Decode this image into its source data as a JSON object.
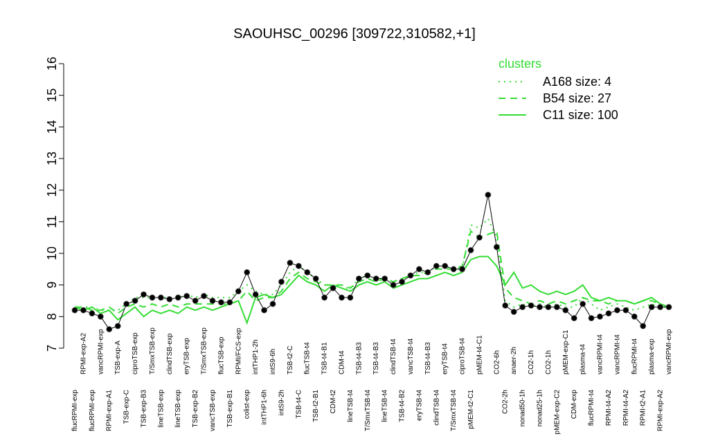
{
  "chart_data": {
    "type": "line",
    "title": "SAOUHSC_00296 [309722,310582,+1]",
    "categories": [
      "flucRPMI-exp",
      "RPMI-exp-A2",
      "flucRPMI-exp",
      "vancRPMI-exp",
      "RPMI-exp-A1",
      "TSB-exp-A",
      "TSB-exp-C",
      "ciproTSB-exp",
      "TSB-exp-B3",
      "T/SmxTSB-exp",
      "lineTSB-exp",
      "clindTSB-exp",
      "lineTSB-exp",
      "eryTSB-exp",
      "TSB-exp-B2",
      "T/SmxTSB-exp",
      "vancTSB-exp",
      "flucTSB-exp",
      "TSB-exp-B1",
      "RPMI/FCS-exp",
      "colist-exp",
      "intTHP1-2h",
      "intTHP1-6h",
      "intS9-6h",
      "intS9-2h",
      "TSB-t2-C",
      "TSB-t4-C",
      "flucTSB-t4",
      "TSB-t2-B1",
      "TSB-t4-B1",
      "CDM-t2",
      "CDM-t4",
      "lineTSB-t4",
      "TSB-t4-B3",
      "T/SmxTSB-t4",
      "TSB-t4-B3",
      "lineTSB-t4",
      "clindTSB-t4",
      "TSB-t4-B2",
      "vancTSB-t4",
      "eryTSB-t4",
      "TSB-t4-B3",
      "clindTSB-t4",
      "eryTSB-t4",
      "T/SmxTSB-t4",
      "ciproTSB-t4",
      "pMEM-t2-C1",
      "pMEM-t4-C1",
      null,
      "CO2-6h",
      "CO2-2h",
      "anaer-2h",
      "nonad50-1h",
      "CO2-1h",
      "nonad25-1h",
      "CO2-1h",
      "pMEM-exp-C2",
      "pMEM-exp-C1",
      "CDM-exp",
      "plasma-t4",
      "flucRPMI-t4",
      "vancRPMI-t4",
      "RPMI-t4-A2",
      "vancRPMI-t4",
      "RPMI-t4-A2",
      "flucRPMI-t4",
      "RPMI-t2-A1",
      "plasma-exp",
      "RPMI-exp-A2",
      "vancRPMI-exp"
    ],
    "values": [
      8.2,
      8.2,
      8.1,
      8.0,
      7.6,
      7.7,
      8.4,
      8.5,
      8.7,
      8.6,
      8.6,
      8.55,
      8.6,
      8.65,
      8.5,
      8.65,
      8.5,
      8.45,
      8.45,
      8.8,
      9.4,
      8.7,
      8.2,
      8.4,
      9.1,
      9.7,
      9.6,
      9.4,
      9.2,
      8.6,
      8.9,
      8.6,
      8.6,
      9.2,
      9.3,
      9.2,
      9.2,
      9.0,
      9.1,
      9.3,
      9.5,
      9.4,
      9.6,
      9.6,
      9.5,
      9.5,
      10.1,
      10.5,
      11.85,
      10.2,
      8.35,
      8.15,
      8.3,
      8.35,
      8.3,
      8.3,
      8.3,
      8.2,
      7.95,
      8.4,
      7.95,
      8.0,
      8.1,
      8.2,
      8.2,
      8.0,
      7.7,
      8.3,
      8.3,
      8.3
    ],
    "color": "#000000",
    "legend_title": "clusters",
    "series": [
      {
        "name": "A168 size: 4",
        "color": "#33dd33",
        "dash": "dotted",
        "values": [
          8.3,
          8.3,
          8.3,
          8.2,
          8.2,
          8.2,
          8.4,
          8.6,
          8.6,
          8.6,
          8.6,
          8.6,
          8.6,
          8.7,
          8.6,
          8.7,
          8.6,
          8.6,
          8.6,
          8.8,
          9.0,
          8.8,
          8.7,
          8.7,
          9.0,
          9.4,
          9.6,
          9.4,
          9.2,
          9.0,
          9.0,
          8.9,
          8.9,
          9.2,
          9.3,
          9.2,
          9.2,
          9.1,
          9.2,
          9.3,
          9.4,
          9.4,
          9.6,
          9.6,
          9.5,
          9.5,
          10.9,
          10.8,
          11.1,
          10.5,
          8.5,
          8.3,
          8.4,
          8.3,
          8.4,
          8.3,
          8.4,
          8.3,
          8.3,
          8.6,
          8.4,
          8.2,
          8.3,
          8.4,
          8.3,
          8.2,
          8.3,
          8.4,
          8.3,
          8.3
        ]
      },
      {
        "name": "B54 size: 27",
        "color": "#33dd33",
        "dash": "dashed",
        "values": [
          8.3,
          8.3,
          8.2,
          8.2,
          8.3,
          8.1,
          8.3,
          8.4,
          8.3,
          8.4,
          8.3,
          8.4,
          8.3,
          8.4,
          8.4,
          8.4,
          8.4,
          8.4,
          8.4,
          8.5,
          8.8,
          8.5,
          8.6,
          8.6,
          8.8,
          9.2,
          9.4,
          9.2,
          9.1,
          9.0,
          9.0,
          9.0,
          8.9,
          9.1,
          9.2,
          9.1,
          9.2,
          9.1,
          9.2,
          9.3,
          9.3,
          9.4,
          9.5,
          9.5,
          9.5,
          9.6,
          10.7,
          10.5,
          10.6,
          10.7,
          8.9,
          8.6,
          8.5,
          8.4,
          8.5,
          8.4,
          8.5,
          8.4,
          8.5,
          8.6,
          8.5,
          8.5,
          8.4,
          8.5,
          8.5,
          8.4,
          8.5,
          8.5,
          8.4,
          8.3
        ]
      },
      {
        "name": "C11 size: 100",
        "color": "#33dd33",
        "dash": "solid",
        "values": [
          8.3,
          8.2,
          8.3,
          8.1,
          8.2,
          7.9,
          8.1,
          8.3,
          8.0,
          8.2,
          8.1,
          8.2,
          8.1,
          8.3,
          8.2,
          8.3,
          8.2,
          8.3,
          8.4,
          8.5,
          7.8,
          8.6,
          8.7,
          8.6,
          8.7,
          9.0,
          9.3,
          9.1,
          9.0,
          8.8,
          9.0,
          8.9,
          8.8,
          9.0,
          9.1,
          9.0,
          9.1,
          8.9,
          9.0,
          9.1,
          9.2,
          9.2,
          9.3,
          9.4,
          9.3,
          9.4,
          9.8,
          9.9,
          9.9,
          9.6,
          9.0,
          9.4,
          8.9,
          9.0,
          8.8,
          8.7,
          8.8,
          8.7,
          8.8,
          9.0,
          8.6,
          8.5,
          8.6,
          8.5,
          8.5,
          8.4,
          8.5,
          8.6,
          8.4,
          8.3
        ]
      }
    ],
    "ylim": [
      7,
      16
    ],
    "yticks": [
      7,
      8,
      9,
      10,
      11,
      12,
      13,
      14,
      15,
      16
    ],
    "legend": "top-right"
  }
}
